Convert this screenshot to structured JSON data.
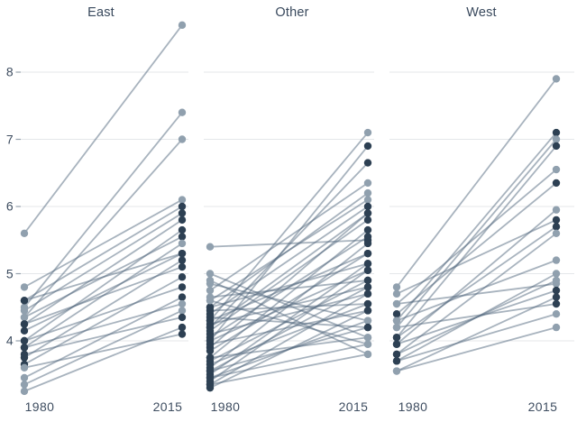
{
  "chart_data": {
    "type": "line",
    "variant": "faceted-slopegraph",
    "title": "",
    "x_categories": [
      "1980",
      "2015"
    ],
    "yticks": [
      8,
      7,
      6,
      5,
      4
    ],
    "ylim": [
      3.1,
      8.9
    ],
    "grid": true,
    "legend": false,
    "colors": {
      "dark": "#2d4053",
      "light": "#90a0ae",
      "line": "#51677d",
      "grid": "#e4e7ea",
      "tick": "#97a2ad",
      "text": "#3e4d60"
    },
    "facets": [
      {
        "title": "East",
        "lines": [
          [
            5.6,
            8.7,
            "l",
            "l"
          ],
          [
            4.5,
            7.4,
            "l",
            "l"
          ],
          [
            4.35,
            7.0,
            "l",
            "l"
          ],
          [
            4.8,
            6.1,
            "l",
            "l"
          ],
          [
            4.6,
            6.0,
            "d",
            "d"
          ],
          [
            4.45,
            5.9,
            "l",
            "d"
          ],
          [
            4.25,
            5.8,
            "d",
            "d"
          ],
          [
            4.0,
            5.65,
            "d",
            "d"
          ],
          [
            4.35,
            5.55,
            "l",
            "d"
          ],
          [
            3.9,
            5.45,
            "d",
            "l"
          ],
          [
            4.15,
            5.3,
            "d",
            "d"
          ],
          [
            3.75,
            5.2,
            "d",
            "d"
          ],
          [
            4.25,
            5.1,
            "d",
            "d"
          ],
          [
            3.65,
            4.95,
            "d",
            "d"
          ],
          [
            4.0,
            4.8,
            "d",
            "d"
          ],
          [
            4.6,
            5.3,
            "d",
            "d"
          ],
          [
            3.45,
            4.65,
            "l",
            "d"
          ],
          [
            3.9,
            4.55,
            "d",
            "l"
          ],
          [
            3.35,
            4.45,
            "l",
            "l"
          ],
          [
            3.25,
            4.2,
            "l",
            "d"
          ],
          [
            3.6,
            4.1,
            "l",
            "d"
          ],
          [
            3.8,
            4.35,
            "d",
            "d"
          ]
        ]
      },
      {
        "title": "Other",
        "lines": [
          [
            4.3,
            7.1,
            "d",
            "l"
          ],
          [
            4.0,
            6.9,
            "d",
            "d"
          ],
          [
            4.2,
            6.65,
            "d",
            "d"
          ],
          [
            4.75,
            6.35,
            "l",
            "l"
          ],
          [
            4.5,
            6.2,
            "d",
            "l"
          ],
          [
            4.6,
            6.1,
            "l",
            "l"
          ],
          [
            4.4,
            6.0,
            "d",
            "d"
          ],
          [
            3.9,
            5.9,
            "d",
            "d"
          ],
          [
            4.15,
            5.8,
            "d",
            "d"
          ],
          [
            3.75,
            5.65,
            "d",
            "d"
          ],
          [
            5.4,
            5.5,
            "l",
            "d"
          ],
          [
            4.05,
            5.55,
            "d",
            "d"
          ],
          [
            3.6,
            5.45,
            "d",
            "d"
          ],
          [
            4.3,
            5.3,
            "d",
            "d"
          ],
          [
            3.85,
            5.3,
            "d",
            "d"
          ],
          [
            4.5,
            5.15,
            "d",
            "d"
          ],
          [
            3.5,
            5.15,
            "d",
            "d"
          ],
          [
            4.0,
            5.05,
            "d",
            "d"
          ],
          [
            3.4,
            5.05,
            "d",
            "d"
          ],
          [
            4.65,
            4.9,
            "l",
            "d"
          ],
          [
            3.7,
            4.9,
            "d",
            "d"
          ],
          [
            4.25,
            4.8,
            "d",
            "d"
          ],
          [
            3.55,
            4.8,
            "d",
            "d"
          ],
          [
            4.1,
            4.7,
            "d",
            "d"
          ],
          [
            3.35,
            4.7,
            "d",
            "d"
          ],
          [
            4.45,
            4.55,
            "d",
            "d"
          ],
          [
            3.65,
            4.55,
            "d",
            "d"
          ],
          [
            3.3,
            4.45,
            "d",
            "d"
          ],
          [
            3.95,
            4.45,
            "d",
            "d"
          ],
          [
            4.85,
            4.3,
            "l",
            "l"
          ],
          [
            3.45,
            4.3,
            "d",
            "l"
          ],
          [
            4.35,
            4.2,
            "d",
            "d"
          ],
          [
            3.55,
            4.2,
            "d",
            "d"
          ],
          [
            5.0,
            4.05,
            "l",
            "l"
          ],
          [
            3.75,
            4.05,
            "d",
            "l"
          ],
          [
            4.6,
            3.95,
            "l",
            "l"
          ],
          [
            3.45,
            3.95,
            "d",
            "l"
          ],
          [
            4.9,
            3.8,
            "l",
            "l"
          ],
          [
            3.35,
            3.8,
            "d",
            "l"
          ],
          [
            4.2,
            5.9,
            "d",
            "d"
          ]
        ]
      },
      {
        "title": "West",
        "lines": [
          [
            4.8,
            7.9,
            "l",
            "l"
          ],
          [
            4.3,
            7.1,
            "l",
            "d"
          ],
          [
            4.2,
            7.0,
            "l",
            "l"
          ],
          [
            4.05,
            6.9,
            "d",
            "d"
          ],
          [
            4.55,
            6.55,
            "l",
            "l"
          ],
          [
            4.4,
            6.35,
            "d",
            "d"
          ],
          [
            3.95,
            5.95,
            "d",
            "l"
          ],
          [
            4.7,
            5.8,
            "l",
            "d"
          ],
          [
            4.05,
            5.7,
            "d",
            "d"
          ],
          [
            3.8,
            5.6,
            "d",
            "l"
          ],
          [
            4.3,
            5.2,
            "l",
            "l"
          ],
          [
            3.7,
            5.0,
            "d",
            "l"
          ],
          [
            4.55,
            4.85,
            "l",
            "l"
          ],
          [
            3.95,
            4.75,
            "d",
            "d"
          ],
          [
            3.55,
            4.65,
            "l",
            "d"
          ],
          [
            4.2,
            4.55,
            "l",
            "d"
          ],
          [
            3.7,
            4.4,
            "d",
            "l"
          ],
          [
            3.55,
            4.2,
            "l",
            "l"
          ],
          [
            3.8,
            4.9,
            "d",
            "l"
          ]
        ]
      }
    ]
  }
}
